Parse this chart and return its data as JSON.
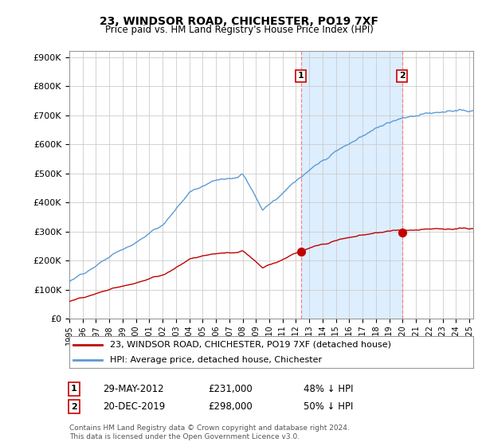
{
  "title": "23, WINDSOR ROAD, CHICHESTER, PO19 7XF",
  "subtitle": "Price paid vs. HM Land Registry's House Price Index (HPI)",
  "legend_line1": "23, WINDSOR ROAD, CHICHESTER, PO19 7XF (detached house)",
  "legend_line2": "HPI: Average price, detached house, Chichester",
  "transaction1_date": "29-MAY-2012",
  "transaction1_price": "£231,000",
  "transaction1_hpi": "48% ↓ HPI",
  "transaction2_date": "20-DEC-2019",
  "transaction2_price": "£298,000",
  "transaction2_hpi": "50% ↓ HPI",
  "footer": "Contains HM Land Registry data © Crown copyright and database right 2024.\nThis data is licensed under the Open Government Licence v3.0.",
  "hpi_color": "#5b9bd5",
  "price_color": "#c00000",
  "vline_color": "#ff8080",
  "shade_color": "#ddeeff",
  "background_color": "#ffffff",
  "ylim": [
    0,
    900000
  ],
  "yticks": [
    0,
    100000,
    200000,
    300000,
    400000,
    500000,
    600000,
    700000,
    800000,
    900000
  ],
  "x_start_year": 1995,
  "x_end_year": 2025,
  "t_sale1": 2012.37,
  "t_sale2": 2019.96,
  "price1": 231000,
  "price2": 298000
}
